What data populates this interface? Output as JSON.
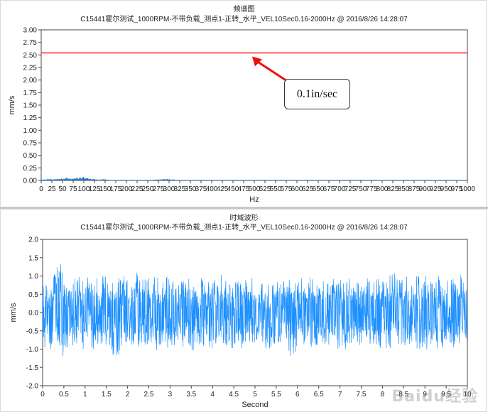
{
  "top_panel": {
    "title": "频谱图",
    "subtitle": "C15441霍尔测试_1000RPM-不带负载_测点1-正转_水平_VEL10Sec0.16-2000Hz @ 2016/8/26 14:28:07",
    "annotation": "0.1in/sec"
  },
  "bottom_panel": {
    "title": "时域波形",
    "subtitle": "C15441霍尔测试_1000RPM-不带负载_测点1-正转_水平_VEL10Sec0.16-2000Hz @ 2016/8/26 14:28:07"
  },
  "watermark": "Baidu经验",
  "colors": {
    "spectrum": "#1f77c4",
    "waveform": "#1e90ff",
    "alarm_line": "#ff2020",
    "arrow": "#ee1111"
  },
  "chart_data": [
    {
      "type": "line",
      "xlabel": "Hz",
      "ylabel": "mm/s",
      "xlim": [
        0,
        1000
      ],
      "ylim": [
        0,
        3.0
      ],
      "xticks": [
        0,
        25,
        50,
        75,
        100,
        125,
        150,
        175,
        200,
        225,
        250,
        275,
        300,
        325,
        350,
        375,
        400,
        425,
        450,
        475,
        500,
        525,
        550,
        575,
        600,
        625,
        650,
        675,
        700,
        725,
        750,
        775,
        800,
        825,
        850,
        875,
        900,
        925,
        950,
        975,
        1000
      ],
      "yticks": [
        "0.00",
        "0.25",
        "0.50",
        "0.75",
        "1.00",
        "1.25",
        "1.50",
        "1.75",
        "2.00",
        "2.25",
        "2.50",
        "2.75",
        "3.00"
      ],
      "alarm_level": 2.54,
      "series": [
        {
          "x": [
            0,
            10,
            20,
            30,
            40,
            50,
            60,
            70,
            80,
            90,
            100,
            110,
            120,
            130,
            140,
            150,
            160,
            170,
            180,
            200,
            220,
            240,
            260,
            280,
            300,
            320,
            340,
            360,
            380,
            400,
            420,
            440,
            460,
            480,
            500,
            520,
            540,
            560,
            580,
            600,
            620,
            640,
            660,
            680,
            700,
            720,
            740,
            760,
            780,
            800,
            820,
            840,
            860,
            880,
            900,
            920,
            940,
            960,
            980,
            1000
          ],
          "values": [
            0.01,
            0.02,
            0.03,
            0.02,
            0.03,
            0.04,
            0.05,
            0.03,
            0.04,
            0.05,
            0.06,
            0.04,
            0.03,
            0.02,
            0.02,
            0.02,
            0.01,
            0.01,
            0.01,
            0.01,
            0.01,
            0.01,
            0.01,
            0.02,
            0.03,
            0.01,
            0.01,
            0.01,
            0.01,
            0.01,
            0.01,
            0.01,
            0.01,
            0.01,
            0.01,
            0.01,
            0.01,
            0.01,
            0.01,
            0.01,
            0.01,
            0.01,
            0.01,
            0.01,
            0.01,
            0.01,
            0.01,
            0.01,
            0.01,
            0.01,
            0.01,
            0.01,
            0.01,
            0.01,
            0.01,
            0.01,
            0.01,
            0.01,
            0.01,
            0.01
          ]
        }
      ]
    },
    {
      "type": "line",
      "xlabel": "Second",
      "ylabel": "mm/s",
      "xlim": [
        0,
        10
      ],
      "ylim": [
        -2.0,
        2.0
      ],
      "xticks": [
        "0",
        "0.5",
        "1",
        "1.5",
        "2",
        "2.5",
        "3",
        "3.5",
        "4",
        "4.5",
        "5",
        "5.5",
        "6",
        "6.5",
        "7",
        "7.5",
        "8",
        "8.5",
        "9",
        "9.5",
        "10"
      ],
      "yticks": [
        "-2.0",
        "-1.5",
        "-1.0",
        "-0.5",
        "0.0",
        "0.5",
        "1.0",
        "1.5",
        "2.0"
      ],
      "series": [
        {
          "x": [
            0,
            0.25,
            0.35,
            0.5,
            0.75,
            1,
            1.25,
            1.5,
            1.75,
            2,
            2.25,
            2.5,
            2.75,
            3,
            3.25,
            3.5,
            3.75,
            4,
            4.25,
            4.5,
            4.75,
            5,
            5.25,
            5.5,
            5.75,
            5.85,
            6,
            6.25,
            6.5,
            6.75,
            7,
            7.25,
            7.5,
            7.75,
            8,
            8.25,
            8.5,
            8.75,
            9,
            9.25,
            9.5,
            9.75,
            10
          ],
          "max": [
            0.9,
            1.1,
            1.65,
            1.2,
            1.0,
            1.05,
            0.95,
            1.2,
            1.0,
            1.0,
            1.1,
            1.05,
            0.95,
            1.0,
            1.0,
            1.05,
            1.0,
            1.0,
            1.05,
            1.0,
            1.0,
            0.95,
            1.0,
            1.0,
            1.0,
            0.9,
            1.0,
            1.0,
            0.95,
            1.0,
            0.95,
            1.0,
            1.0,
            1.0,
            1.0,
            1.1,
            1.0,
            1.0,
            1.05,
            1.0,
            1.25,
            1.0,
            1.05
          ],
          "min": [
            -1.0,
            -1.05,
            -1.1,
            -1.2,
            -1.0,
            -1.05,
            -1.0,
            -1.1,
            -1.3,
            -1.0,
            -1.05,
            -1.0,
            -1.05,
            -1.0,
            -1.0,
            -1.05,
            -1.1,
            -1.0,
            -1.0,
            -1.0,
            -1.05,
            -1.0,
            -1.0,
            -1.05,
            -1.0,
            -1.65,
            -1.0,
            -1.1,
            -1.05,
            -1.0,
            -1.05,
            -1.0,
            -1.05,
            -1.0,
            -1.25,
            -1.0,
            -1.05,
            -1.0,
            -1.0,
            -1.05,
            -1.0,
            -1.05,
            -1.15
          ]
        }
      ]
    }
  ]
}
